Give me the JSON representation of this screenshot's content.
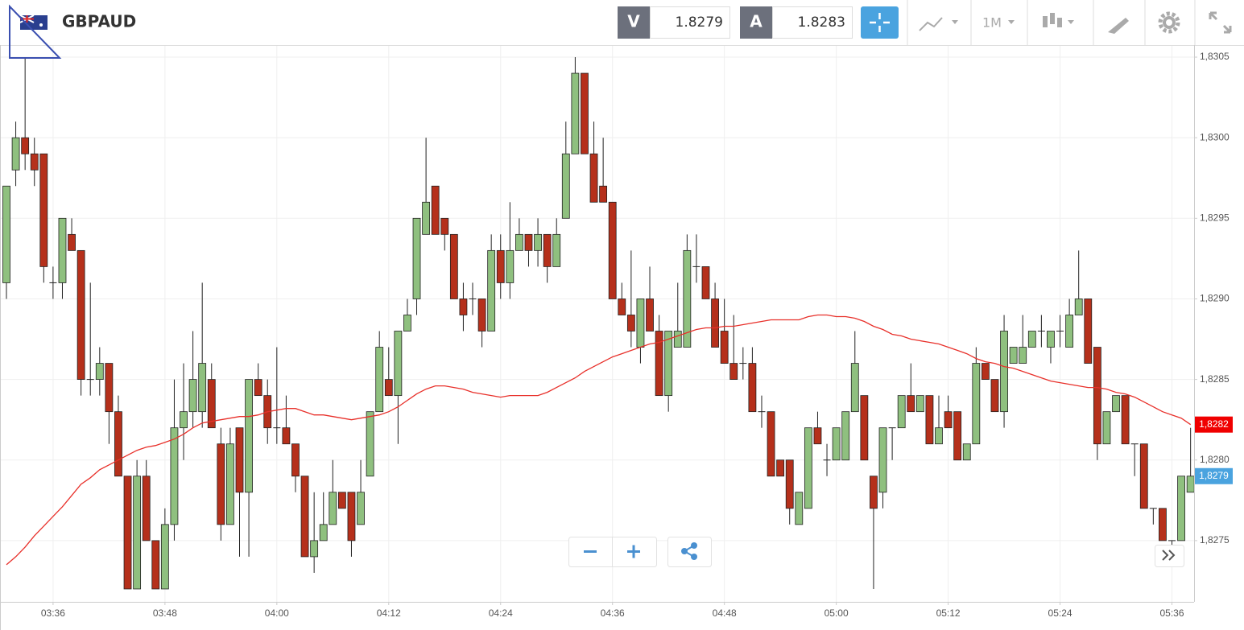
{
  "chart_data": {
    "type": "candlestick",
    "title": "GBPAUD",
    "bid_label": "V",
    "bid": 1.8279,
    "ask_label": "A",
    "ask": 1.8283,
    "timeframe": "1M",
    "categories": [
      null,
      null,
      null,
      null,
      null,
      "03:36",
      null,
      null,
      null,
      null,
      null,
      null,
      null,
      null,
      null,
      null,
      null,
      "03:48",
      null,
      null,
      null,
      null,
      null,
      null,
      null,
      null,
      null,
      null,
      null,
      "04:00",
      null,
      null,
      null,
      null,
      null,
      null,
      null,
      null,
      null,
      null,
      null,
      "04:12",
      null,
      null,
      null,
      null,
      null,
      null,
      null,
      null,
      null,
      null,
      null,
      "04:24",
      null,
      null,
      null,
      null,
      null,
      null,
      null,
      null,
      null,
      null,
      null,
      "04:36",
      null,
      null,
      null,
      null,
      null,
      null,
      null,
      null,
      null,
      null,
      null,
      "04:48",
      null,
      null,
      null,
      null,
      null,
      null,
      null,
      null,
      null,
      null,
      null,
      "05:00",
      null,
      null,
      null,
      null,
      null,
      null,
      null,
      null,
      null,
      null,
      null,
      "05:12",
      null,
      null,
      null,
      null,
      null,
      null,
      null,
      null,
      null,
      null,
      null,
      "05:24",
      null,
      null,
      null,
      null,
      null,
      null,
      null,
      null,
      null,
      null,
      null,
      "05:36",
      null,
      null
    ],
    "candles": {
      "up_color": "#8fc07f",
      "down_color": "#b5301b",
      "last_label": "1,8279",
      "last_color": "#4aa3df",
      "open": [
        1.8291,
        1.8298,
        1.83,
        1.8299,
        1.8299,
        1.8291,
        1.8291,
        1.8294,
        1.8293,
        1.8285,
        1.8285,
        1.8286,
        1.8283,
        1.8279,
        1.8272,
        1.8279,
        1.8275,
        1.8272,
        1.8276,
        1.8282,
        1.8283,
        1.8283,
        1.8285,
        1.8281,
        1.8276,
        1.8282,
        1.8278,
        1.8285,
        1.8284,
        1.8282,
        1.8282,
        1.8281,
        1.8279,
        1.8274,
        1.8275,
        1.8276,
        1.8278,
        1.8278,
        1.8276,
        1.8279,
        1.8283,
        1.8285,
        1.8284,
        1.8288,
        1.829,
        1.8294,
        1.8297,
        1.8295,
        1.8294,
        1.829,
        1.829,
        1.829,
        1.8288,
        1.8293,
        1.8291,
        1.8293,
        1.8294,
        1.8293,
        1.8294,
        1.8292,
        1.8295,
        1.8299,
        1.8304,
        1.8299,
        1.8297,
        1.8296,
        1.829,
        1.8289,
        1.8287,
        1.829,
        1.8288,
        1.8284,
        1.8287,
        1.8287,
        1.8292,
        1.8292,
        1.829,
        1.8288,
        1.8286,
        1.8286,
        1.8286,
        1.8283,
        1.8283,
        1.828,
        1.828,
        1.8276,
        1.8277,
        1.8282,
        1.828,
        1.828,
        1.828,
        1.8283,
        1.8284,
        1.8279,
        1.8278,
        1.8282,
        1.8282,
        1.8284,
        1.8283,
        1.8284,
        1.8281,
        1.8283,
        1.8283,
        1.828,
        1.8281,
        1.8286,
        1.8285,
        1.8283,
        1.8286,
        1.8286,
        1.8287,
        1.8288,
        1.8287,
        1.8288,
        1.8287,
        1.8289,
        1.829,
        1.8287,
        1.8281,
        1.8283,
        1.8284,
        1.8281,
        1.8281,
        1.8277,
        1.8277,
        1.8275,
        1.8275,
        1.8278
      ],
      "high": [
        1.8297,
        1.8301,
        1.8305,
        1.83,
        1.8299,
        1.8292,
        1.8295,
        1.8295,
        1.8293,
        1.8291,
        1.8287,
        1.8286,
        1.8284,
        1.8279,
        1.828,
        1.828,
        1.8275,
        1.8277,
        1.8285,
        1.8286,
        1.8288,
        1.8291,
        1.8286,
        1.8282,
        1.8282,
        1.8282,
        1.8285,
        1.8286,
        1.8285,
        1.8287,
        1.8284,
        1.8281,
        1.8279,
        1.8278,
        1.8278,
        1.828,
        1.8278,
        1.8278,
        1.828,
        1.8283,
        1.8288,
        1.8287,
        1.8288,
        1.829,
        1.8295,
        1.83,
        1.8297,
        1.8295,
        1.8294,
        1.8291,
        1.8291,
        1.829,
        1.8294,
        1.8294,
        1.8296,
        1.8295,
        1.8294,
        1.8295,
        1.8294,
        1.8295,
        1.8301,
        1.8305,
        1.8304,
        1.8301,
        1.83,
        1.8296,
        1.8291,
        1.8293,
        1.829,
        1.8292,
        1.8289,
        1.8288,
        1.8291,
        1.8294,
        1.8294,
        1.8292,
        1.8291,
        1.829,
        1.8289,
        1.8287,
        1.8287,
        1.8284,
        1.8283,
        1.828,
        1.828,
        1.8278,
        1.8282,
        1.8283,
        1.8281,
        1.8282,
        1.8283,
        1.8288,
        1.8284,
        1.8279,
        1.8282,
        1.8282,
        1.8284,
        1.8286,
        1.8284,
        1.8284,
        1.8284,
        1.8284,
        1.8283,
        1.8281,
        1.8287,
        1.8286,
        1.8285,
        1.8289,
        1.8287,
        1.8289,
        1.8288,
        1.8289,
        1.8288,
        1.8289,
        1.829,
        1.8293,
        1.829,
        1.8287,
        1.8283,
        1.8284,
        1.8284,
        1.8281,
        1.8281,
        1.8277,
        1.8277,
        1.8275,
        1.8279,
        1.8282
      ],
      "low": [
        1.829,
        1.8297,
        1.8298,
        1.8297,
        1.8291,
        1.829,
        1.829,
        1.8293,
        1.8284,
        1.8284,
        1.8284,
        1.8281,
        1.8279,
        1.8272,
        1.8272,
        1.8275,
        1.8272,
        1.8272,
        1.8275,
        1.828,
        1.8282,
        1.8282,
        1.8282,
        1.8275,
        1.8276,
        1.8274,
        1.8274,
        1.8284,
        1.8281,
        1.8281,
        1.8281,
        1.8278,
        1.8274,
        1.8273,
        1.8275,
        1.8276,
        1.8277,
        1.8274,
        1.8276,
        1.8279,
        1.8283,
        1.8284,
        1.8281,
        1.8288,
        1.8289,
        1.8294,
        1.8294,
        1.8293,
        1.829,
        1.8288,
        1.8289,
        1.8287,
        1.8288,
        1.829,
        1.829,
        1.8293,
        1.8292,
        1.8292,
        1.8291,
        1.8292,
        1.8295,
        1.8299,
        1.8299,
        1.8296,
        1.8296,
        1.829,
        1.8289,
        1.8287,
        1.8286,
        1.8288,
        1.8284,
        1.8283,
        1.8287,
        1.8287,
        1.8291,
        1.829,
        1.8287,
        1.8286,
        1.8285,
        1.8285,
        1.8283,
        1.8282,
        1.8279,
        1.8279,
        1.8276,
        1.8276,
        1.8277,
        1.8281,
        1.8279,
        1.828,
        1.828,
        1.8283,
        1.828,
        1.8272,
        1.8277,
        1.828,
        1.8282,
        1.8283,
        1.8283,
        1.8281,
        1.8281,
        1.8282,
        1.828,
        1.828,
        1.8281,
        1.8285,
        1.8283,
        1.8282,
        1.8286,
        1.8286,
        1.8287,
        1.8287,
        1.8286,
        1.8287,
        1.8287,
        1.8289,
        1.8286,
        1.828,
        1.8281,
        1.8283,
        1.8281,
        1.8279,
        1.8277,
        1.8276,
        1.8275,
        1.8274,
        1.8275,
        1.8278
      ],
      "close": [
        1.8297,
        1.83,
        1.8299,
        1.8298,
        1.8292,
        1.8291,
        1.8295,
        1.8293,
        1.8285,
        1.8285,
        1.8286,
        1.8283,
        1.8279,
        1.8272,
        1.8279,
        1.8275,
        1.8272,
        1.8276,
        1.8282,
        1.8283,
        1.8285,
        1.8286,
        1.8282,
        1.8276,
        1.8281,
        1.8278,
        1.8285,
        1.8284,
        1.8282,
        1.8282,
        1.8281,
        1.8279,
        1.8274,
        1.8275,
        1.8276,
        1.8278,
        1.8277,
        1.8275,
        1.8278,
        1.8283,
        1.8287,
        1.8284,
        1.8288,
        1.8289,
        1.8295,
        1.8296,
        1.8294,
        1.8294,
        1.829,
        1.8289,
        1.829,
        1.8288,
        1.8293,
        1.8291,
        1.8293,
        1.8294,
        1.8293,
        1.8294,
        1.8292,
        1.8294,
        1.8299,
        1.8304,
        1.8299,
        1.8296,
        1.8296,
        1.829,
        1.8289,
        1.8288,
        1.829,
        1.8288,
        1.8284,
        1.8288,
        1.8288,
        1.8293,
        1.8292,
        1.829,
        1.8287,
        1.8286,
        1.8285,
        1.8286,
        1.8283,
        1.8283,
        1.8279,
        1.8279,
        1.8277,
        1.8278,
        1.8282,
        1.8281,
        1.828,
        1.8282,
        1.8283,
        1.8286,
        1.828,
        1.8277,
        1.8282,
        1.8282,
        1.8284,
        1.8283,
        1.8284,
        1.8281,
        1.8282,
        1.8282,
        1.828,
        1.8281,
        1.8286,
        1.8285,
        1.8283,
        1.8288,
        1.8287,
        1.8287,
        1.8288,
        1.8288,
        1.8288,
        1.8288,
        1.8289,
        1.829,
        1.8286,
        1.8281,
        1.8283,
        1.8284,
        1.8281,
        1.8281,
        1.8277,
        1.8277,
        1.8275,
        1.8275,
        1.8279,
        1.8279
      ]
    },
    "ma": {
      "color": "#e8302a",
      "last_label": "1,8282",
      "last_color": "#f00000",
      "values": [
        1.82735,
        1.8274,
        1.82746,
        1.82753,
        1.82759,
        1.82765,
        1.82771,
        1.82778,
        1.82785,
        1.82789,
        1.82794,
        1.82797,
        1.828,
        1.82803,
        1.82806,
        1.82808,
        1.82809,
        1.82811,
        1.82813,
        1.82816,
        1.8282,
        1.82823,
        1.82824,
        1.82825,
        1.82826,
        1.82827,
        1.82827,
        1.82828,
        1.8283,
        1.82831,
        1.82832,
        1.82832,
        1.8283,
        1.82828,
        1.82828,
        1.82827,
        1.82826,
        1.82825,
        1.82826,
        1.82827,
        1.82828,
        1.8283,
        1.82833,
        1.82837,
        1.82841,
        1.82844,
        1.82846,
        1.82846,
        1.82845,
        1.82844,
        1.82842,
        1.82841,
        1.8284,
        1.82839,
        1.8284,
        1.8284,
        1.8284,
        1.8284,
        1.82842,
        1.82845,
        1.82848,
        1.82851,
        1.82855,
        1.82858,
        1.82861,
        1.82864,
        1.82866,
        1.82868,
        1.8287,
        1.82872,
        1.82873,
        1.82875,
        1.82877,
        1.82879,
        1.82881,
        1.82882,
        1.82882,
        1.82883,
        1.82883,
        1.82884,
        1.82885,
        1.82886,
        1.82887,
        1.82887,
        1.82887,
        1.82887,
        1.82889,
        1.8289,
        1.8289,
        1.82889,
        1.82889,
        1.82888,
        1.82886,
        1.82883,
        1.82881,
        1.82878,
        1.82877,
        1.82875,
        1.82874,
        1.82873,
        1.82872,
        1.8287,
        1.82868,
        1.82866,
        1.82863,
        1.82861,
        1.8286,
        1.82858,
        1.82857,
        1.82855,
        1.82853,
        1.82851,
        1.82849,
        1.82848,
        1.82847,
        1.82846,
        1.82845,
        1.82845,
        1.82844,
        1.82842,
        1.82841,
        1.82839,
        1.82836,
        1.82833,
        1.8283,
        1.82828,
        1.82826,
        1.82822
      ]
    },
    "ylim": [
      1.82712,
      1.830575
    ],
    "yticks": [
      {
        "value": 1.8275,
        "label": "1,8275"
      },
      {
        "value": 1.828,
        "label": "1,8280"
      },
      {
        "value": 1.8285,
        "label": "1,8285"
      },
      {
        "value": 1.829,
        "label": "1,8290"
      },
      {
        "value": 1.8295,
        "label": "1,8295"
      },
      {
        "value": 1.83,
        "label": "1,8300"
      },
      {
        "value": 1.8305,
        "label": "1,8305"
      }
    ],
    "grid": true
  }
}
